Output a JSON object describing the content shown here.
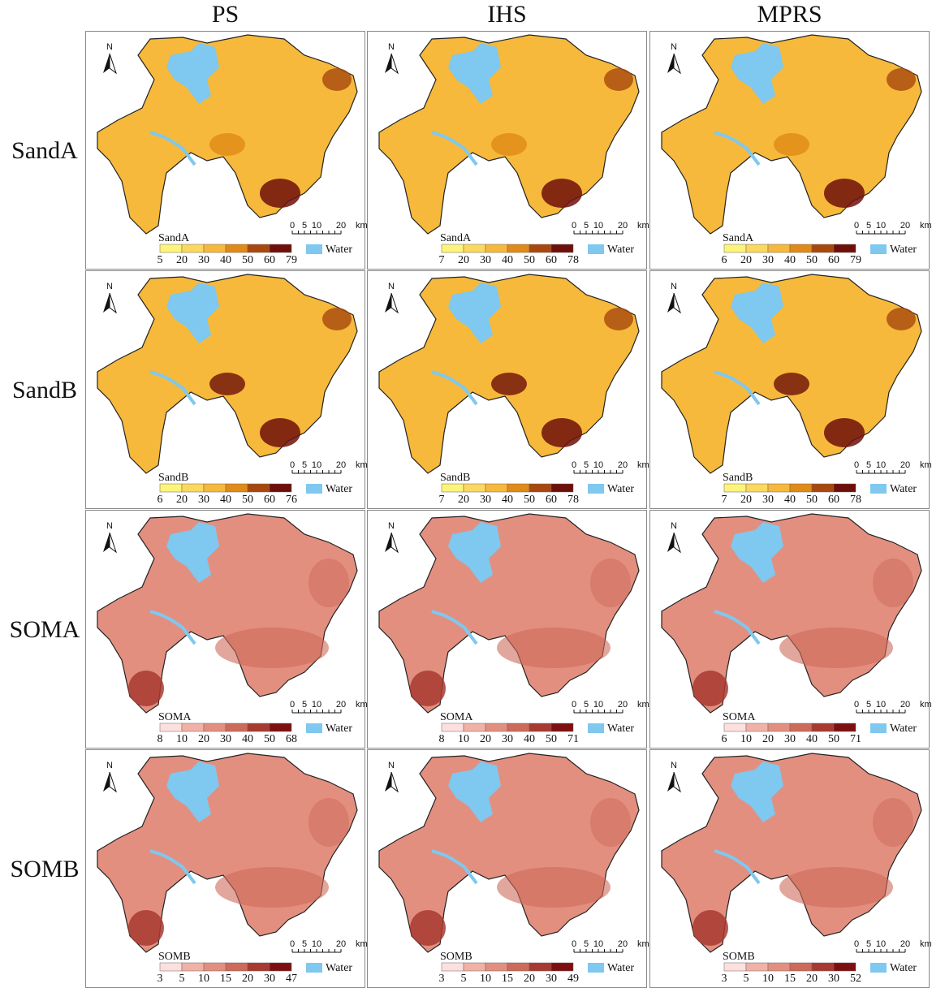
{
  "columns": [
    "PS",
    "IHS",
    "MPRS"
  ],
  "north": "N",
  "scale_labels": [
    "0",
    "5",
    "10",
    "20",
    "km"
  ],
  "water": "Water",
  "rows": [
    {
      "label": "SandA",
      "panels": [
        {
          "legend_title": "SandA",
          "legend_labels": [
            5,
            20,
            30,
            40,
            50,
            60,
            79
          ]
        },
        {
          "legend_title": "SandA",
          "legend_labels": [
            7,
            20,
            30,
            40,
            50,
            60,
            78
          ]
        },
        {
          "legend_title": "SandA",
          "legend_labels": [
            6,
            20,
            30,
            40,
            50,
            60,
            79
          ]
        }
      ]
    },
    {
      "label": "SandB",
      "panels": [
        {
          "legend_title": "SandB",
          "legend_labels": [
            6,
            20,
            30,
            40,
            50,
            60,
            76
          ]
        },
        {
          "legend_title": "SandB",
          "legend_labels": [
            7,
            20,
            30,
            40,
            50,
            60,
            78
          ]
        },
        {
          "legend_title": "SandB",
          "legend_labels": [
            7,
            20,
            30,
            40,
            50,
            60,
            78
          ]
        }
      ]
    },
    {
      "label": "SOMA",
      "panels": [
        {
          "legend_title": "SOMA",
          "legend_labels": [
            8,
            10,
            20,
            30,
            40,
            50,
            68
          ]
        },
        {
          "legend_title": "SOMA",
          "legend_labels": [
            8,
            10,
            20,
            30,
            40,
            50,
            71
          ]
        },
        {
          "legend_title": "SOMA",
          "legend_labels": [
            6,
            10,
            20,
            30,
            40,
            50,
            71
          ]
        }
      ]
    },
    {
      "label": "SOMB",
      "panels": [
        {
          "legend_title": "SOMB",
          "legend_labels": [
            3,
            5,
            10,
            15,
            20,
            30,
            47
          ]
        },
        {
          "legend_title": "SOMB",
          "legend_labels": [
            3,
            5,
            10,
            15,
            20,
            30,
            49
          ]
        },
        {
          "legend_title": "SOMB",
          "legend_labels": [
            3,
            5,
            10,
            15,
            20,
            30,
            52
          ]
        }
      ]
    }
  ]
}
